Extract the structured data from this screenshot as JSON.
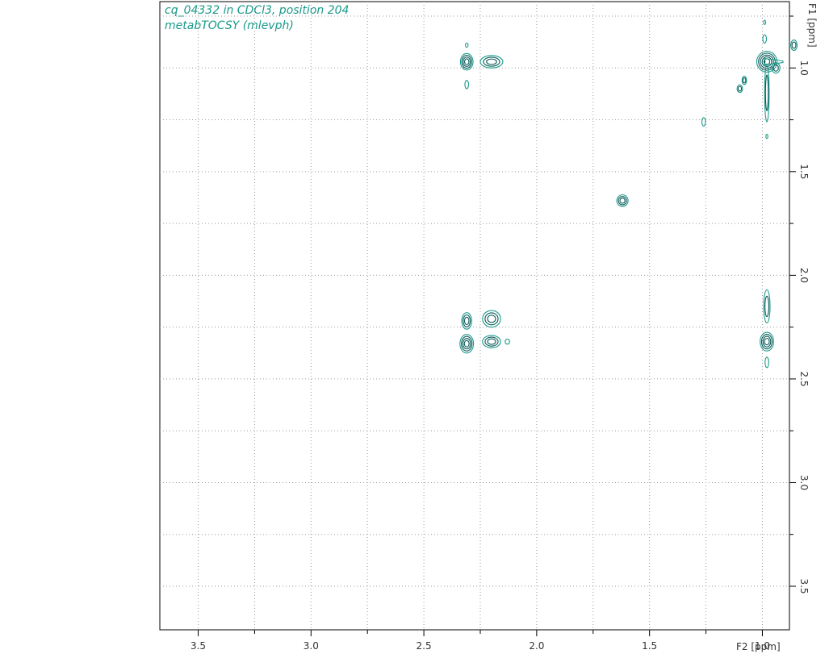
{
  "chart_data": {
    "type": "contour",
    "title_lines": [
      "cq_04332 in CDCl3, position 204",
      "metabTOCSY (mlevph)"
    ],
    "xlabel": "F2 [ppm]",
    "ylabel": "F1 [ppm]",
    "x_ticks": [
      "3.5",
      "3.0",
      "2.5",
      "2.0",
      "1.5",
      "1.0"
    ],
    "y_ticks": [
      "1.0",
      "1.5",
      "2.0",
      "2.5",
      "3.0",
      "3.5"
    ],
    "xlim": [
      3.67,
      0.88
    ],
    "ylim": [
      0.68,
      3.71
    ],
    "x_reversed": true,
    "grid": true,
    "contour_color": "#0b5a5a",
    "contour_color_light": "#1a9a8a",
    "peaks": [
      {
        "x": 2.31,
        "y": 0.97,
        "rx": 0.028,
        "ry": 0.04,
        "levels": 4
      },
      {
        "x": 2.2,
        "y": 0.97,
        "rx": 0.05,
        "ry": 0.03,
        "levels": 3
      },
      {
        "x": 2.31,
        "y": 0.89,
        "rx": 0.006,
        "ry": 0.01,
        "levels": 1
      },
      {
        "x": 2.31,
        "y": 1.08,
        "rx": 0.008,
        "ry": 0.02,
        "levels": 1
      },
      {
        "x": 0.98,
        "y": 0.97,
        "rx": 0.045,
        "ry": 0.05,
        "levels": 5
      },
      {
        "x": 0.98,
        "y": 1.12,
        "rx": 0.01,
        "ry": 0.14,
        "levels": 2
      },
      {
        "x": 0.86,
        "y": 0.89,
        "rx": 0.014,
        "ry": 0.025,
        "levels": 2
      },
      {
        "x": 0.99,
        "y": 0.86,
        "rx": 0.008,
        "ry": 0.02,
        "levels": 1
      },
      {
        "x": 0.99,
        "y": 0.78,
        "rx": 0.004,
        "ry": 0.01,
        "levels": 1
      },
      {
        "x": 0.94,
        "y": 1.0,
        "rx": 0.018,
        "ry": 0.025,
        "levels": 2
      },
      {
        "x": 1.08,
        "y": 1.06,
        "rx": 0.01,
        "ry": 0.02,
        "levels": 2
      },
      {
        "x": 1.1,
        "y": 1.1,
        "rx": 0.012,
        "ry": 0.018,
        "levels": 2
      },
      {
        "x": 1.26,
        "y": 1.26,
        "rx": 0.008,
        "ry": 0.02,
        "levels": 1
      },
      {
        "x": 0.98,
        "y": 1.33,
        "rx": 0.004,
        "ry": 0.01,
        "levels": 1
      },
      {
        "x": 1.62,
        "y": 1.64,
        "rx": 0.025,
        "ry": 0.028,
        "levels": 3
      },
      {
        "x": 2.31,
        "y": 2.22,
        "rx": 0.022,
        "ry": 0.04,
        "levels": 3
      },
      {
        "x": 2.31,
        "y": 2.33,
        "rx": 0.03,
        "ry": 0.045,
        "levels": 4
      },
      {
        "x": 2.2,
        "y": 2.21,
        "rx": 0.04,
        "ry": 0.04,
        "levels": 3
      },
      {
        "x": 2.2,
        "y": 2.32,
        "rx": 0.04,
        "ry": 0.03,
        "levels": 3
      },
      {
        "x": 2.13,
        "y": 2.32,
        "rx": 0.01,
        "ry": 0.012,
        "levels": 1
      },
      {
        "x": 0.98,
        "y": 2.15,
        "rx": 0.014,
        "ry": 0.08,
        "levels": 2
      },
      {
        "x": 0.98,
        "y": 2.32,
        "rx": 0.03,
        "ry": 0.045,
        "levels": 4
      },
      {
        "x": 0.98,
        "y": 2.42,
        "rx": 0.008,
        "ry": 0.025,
        "levels": 1
      }
    ],
    "ridge": {
      "x_from": 0.99,
      "x_to": 0.88,
      "y": 0.97
    }
  }
}
